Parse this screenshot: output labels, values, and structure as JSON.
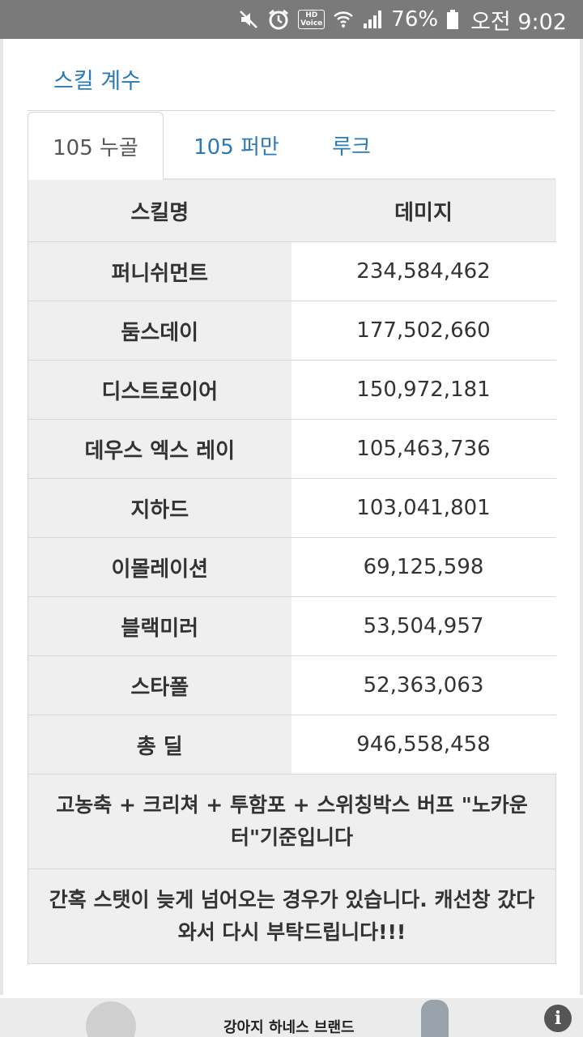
{
  "status_bar": {
    "hd_line1": "HD",
    "hd_line2": "Voice",
    "battery": "76%",
    "time": "오전 9:02",
    "icons": [
      "mute-icon",
      "alarm-icon",
      "hd-voice-icon",
      "wifi-icon",
      "signal-icon",
      "battery-icon"
    ]
  },
  "page": {
    "title": "스킬 계수"
  },
  "tabs": [
    {
      "label": "105 누골",
      "active": true
    },
    {
      "label": "105 퍼만",
      "active": false
    },
    {
      "label": "루크",
      "active": false
    }
  ],
  "table": {
    "headers": [
      "스킬명",
      "데미지"
    ],
    "rows": [
      {
        "name": "퍼니쉬먼트",
        "damage": "234,584,462"
      },
      {
        "name": "둠스데이",
        "damage": "177,502,660"
      },
      {
        "name": "디스트로이어",
        "damage": "150,972,181"
      },
      {
        "name": "데우스 엑스 레이",
        "damage": "105,463,736"
      },
      {
        "name": "지하드",
        "damage": "103,041,801"
      },
      {
        "name": "이몰레이션",
        "damage": "69,125,598"
      },
      {
        "name": "블랙미러",
        "damage": "53,504,957"
      },
      {
        "name": "스타폴",
        "damage": "52,363,063"
      },
      {
        "name": "총 딜",
        "damage": "946,558,458"
      }
    ],
    "notes": [
      "고농축 + 크리쳐 + 투함포 + 스위칭박스 버프 \"노카운터\"기준입니다",
      "간혹 스탯이 늦게 넘어오는 경우가 있습니다. 캐선창 갔다와서 다시 부탁드립니다!!!"
    ]
  },
  "ad": {
    "text": "강아지 하네스 브랜드",
    "info_glyph": "i"
  },
  "colors": {
    "link": "#2a7ab8",
    "status_bar": "#7a7a7a",
    "table_header_bg": "#efefef"
  }
}
